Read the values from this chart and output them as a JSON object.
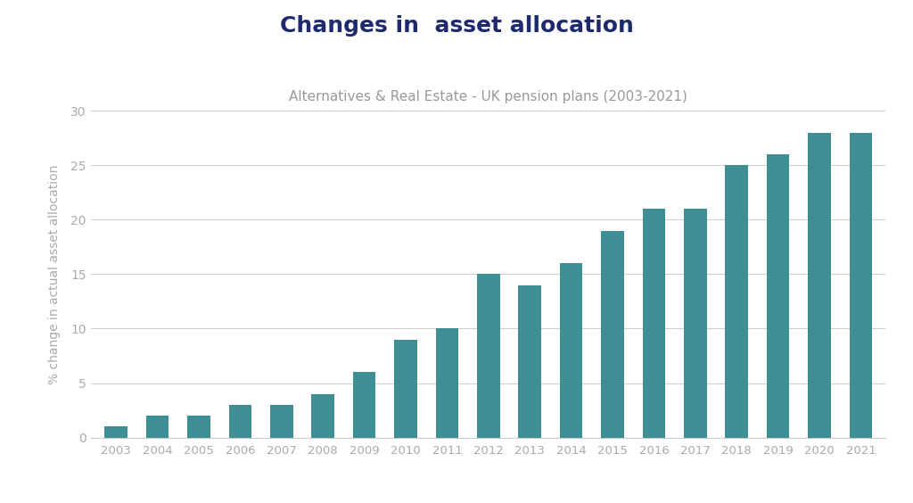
{
  "title": "Changes in  asset allocation",
  "subtitle": "Alternatives & Real Estate - UK pension plans (2003-2021)",
  "years": [
    2003,
    2004,
    2005,
    2006,
    2007,
    2008,
    2009,
    2010,
    2011,
    2012,
    2013,
    2014,
    2015,
    2016,
    2017,
    2018,
    2019,
    2020,
    2021
  ],
  "values": [
    1,
    2,
    2,
    3,
    3,
    4,
    6,
    9,
    10,
    15,
    14,
    16,
    19,
    21,
    21,
    25,
    26,
    28,
    28
  ],
  "bar_color": "#3d8f94",
  "ylabel": "% change in actual asset allocation",
  "ylim": [
    0,
    30
  ],
  "yticks": [
    0,
    5,
    10,
    15,
    20,
    25,
    30
  ],
  "background_color": "#ffffff",
  "title_color": "#1f2a6e",
  "title_fontsize": 18,
  "subtitle_color": "#999999",
  "subtitle_fontsize": 11,
  "tick_color": "#aaaaaa",
  "grid_color": "#cccccc",
  "ylabel_color": "#aaaaaa",
  "ylabel_fontsize": 10,
  "bar_width": 0.55
}
